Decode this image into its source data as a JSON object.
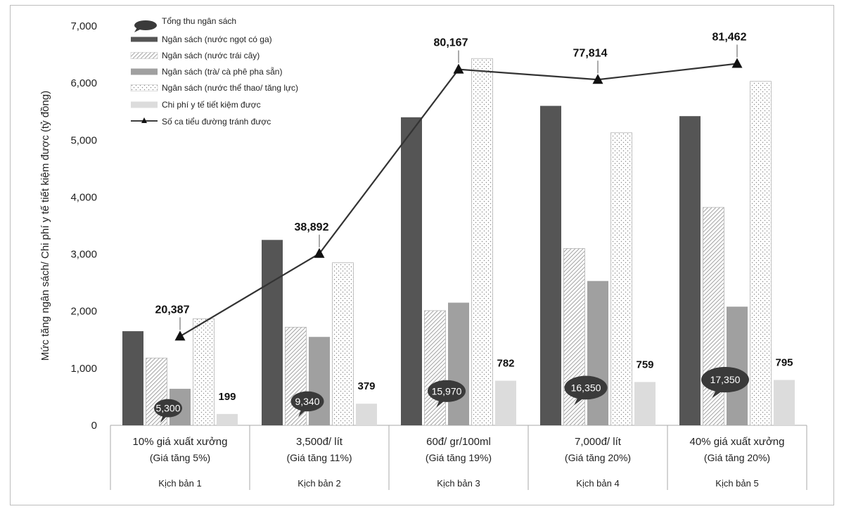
{
  "chart_data": {
    "type": "bar",
    "ylabel": "Mức tăng ngân sách/ Chi phí y tế tiết kiệm được (tỷ đồng)",
    "ylim": [
      0,
      7000
    ],
    "yticks": [
      "0",
      "1,000",
      "2,000",
      "3,000",
      "4,000",
      "5,000",
      "6,000",
      "7,000"
    ],
    "categories": [
      {
        "line1": "10% giá xuất xưởng",
        "line2": "(Giá tăng 5%)",
        "scenario": "Kịch bản 1"
      },
      {
        "line1": "3,500đ/ lít",
        "line2": "(Giá tăng 11%)",
        "scenario": "Kịch bản 2"
      },
      {
        "line1": "60đ/ gr/100ml",
        "line2": "(Giá tăng 19%)",
        "scenario": "Kịch bản 3"
      },
      {
        "line1": "7,000đ/ lít",
        "line2": "(Giá tăng 20%)",
        "scenario": "Kịch bản 4"
      },
      {
        "line1": "40% giá xuất xưởng",
        "line2": "(Giá tăng 20%)",
        "scenario": "Kịch bản 5"
      }
    ],
    "series": [
      {
        "name": "Ngân sách (nước ngọt có ga)",
        "style": "dark",
        "values": [
          1650,
          3250,
          5400,
          5600,
          5420
        ]
      },
      {
        "name": "Ngân sách (nước trái cây)",
        "style": "hatch",
        "values": [
          1180,
          1720,
          2010,
          3100,
          3820
        ]
      },
      {
        "name": "Ngân sách (trà/ cà phê pha sẵn)",
        "style": "mid",
        "values": [
          640,
          1550,
          2150,
          2530,
          2080
        ]
      },
      {
        "name": "Ngân sách (nước thể thao/ tăng lực)",
        "style": "dots",
        "values": [
          1870,
          2850,
          6430,
          5130,
          6030
        ]
      },
      {
        "name": "Chi phí y tế tiết kiệm được",
        "style": "light",
        "values": [
          199,
          379,
          782,
          759,
          795
        ],
        "labels": [
          "199",
          "379",
          "782",
          "759",
          "795"
        ]
      }
    ],
    "line_series": {
      "name": "Số ca tiểu đường tránh được",
      "plot_values": [
        1560,
        3010,
        6240,
        6060,
        6340
      ],
      "labels": [
        "20,387",
        "38,892",
        "80,167",
        "77,814",
        "81,462"
      ]
    },
    "bubbles": {
      "name": "Tổng thu ngân sách",
      "labels": [
        "5,300",
        "9,340",
        "15,970",
        "16,350",
        "17,350"
      ],
      "plot_values": [
        300,
        420,
        600,
        660,
        800
      ]
    },
    "colors": {
      "dark": "#555555",
      "mid": "#a0a0a0",
      "light": "#dcdcdc",
      "bubble": "#3a3a3a",
      "line": "#333333"
    }
  }
}
